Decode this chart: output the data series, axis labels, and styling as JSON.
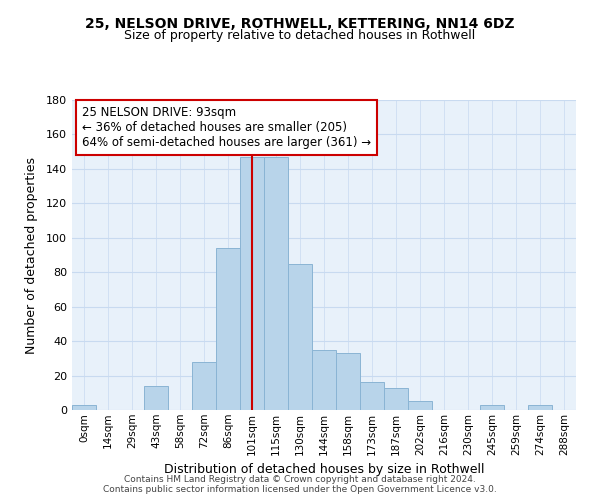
{
  "title1": "25, NELSON DRIVE, ROTHWELL, KETTERING, NN14 6DZ",
  "title2": "Size of property relative to detached houses in Rothwell",
  "xlabel": "Distribution of detached houses by size in Rothwell",
  "ylabel": "Number of detached properties",
  "bar_labels": [
    "0sqm",
    "14sqm",
    "29sqm",
    "43sqm",
    "58sqm",
    "72sqm",
    "86sqm",
    "101sqm",
    "115sqm",
    "130sqm",
    "144sqm",
    "158sqm",
    "173sqm",
    "187sqm",
    "202sqm",
    "216sqm",
    "230sqm",
    "245sqm",
    "259sqm",
    "274sqm",
    "288sqm"
  ],
  "bar_heights": [
    3,
    0,
    0,
    14,
    0,
    28,
    94,
    147,
    147,
    85,
    35,
    33,
    16,
    13,
    5,
    0,
    0,
    3,
    0,
    3,
    0
  ],
  "bar_color": "#b8d4ea",
  "bar_edge_color": "#8ab4d4",
  "vline_x": 7.0,
  "vline_color": "#cc0000",
  "annotation_title": "25 NELSON DRIVE: 93sqm",
  "annotation_line1": "← 36% of detached houses are smaller (205)",
  "annotation_line2": "64% of semi-detached houses are larger (361) →",
  "annotation_box_color": "#ffffff",
  "annotation_box_edge": "#cc0000",
  "ylim": [
    0,
    180
  ],
  "yticks": [
    0,
    20,
    40,
    60,
    80,
    100,
    120,
    140,
    160,
    180
  ],
  "footer1": "Contains HM Land Registry data © Crown copyright and database right 2024.",
  "footer2": "Contains public sector information licensed under the Open Government Licence v3.0.",
  "bg_color": "#e8f1fa",
  "grid_color": "#c8daf0"
}
